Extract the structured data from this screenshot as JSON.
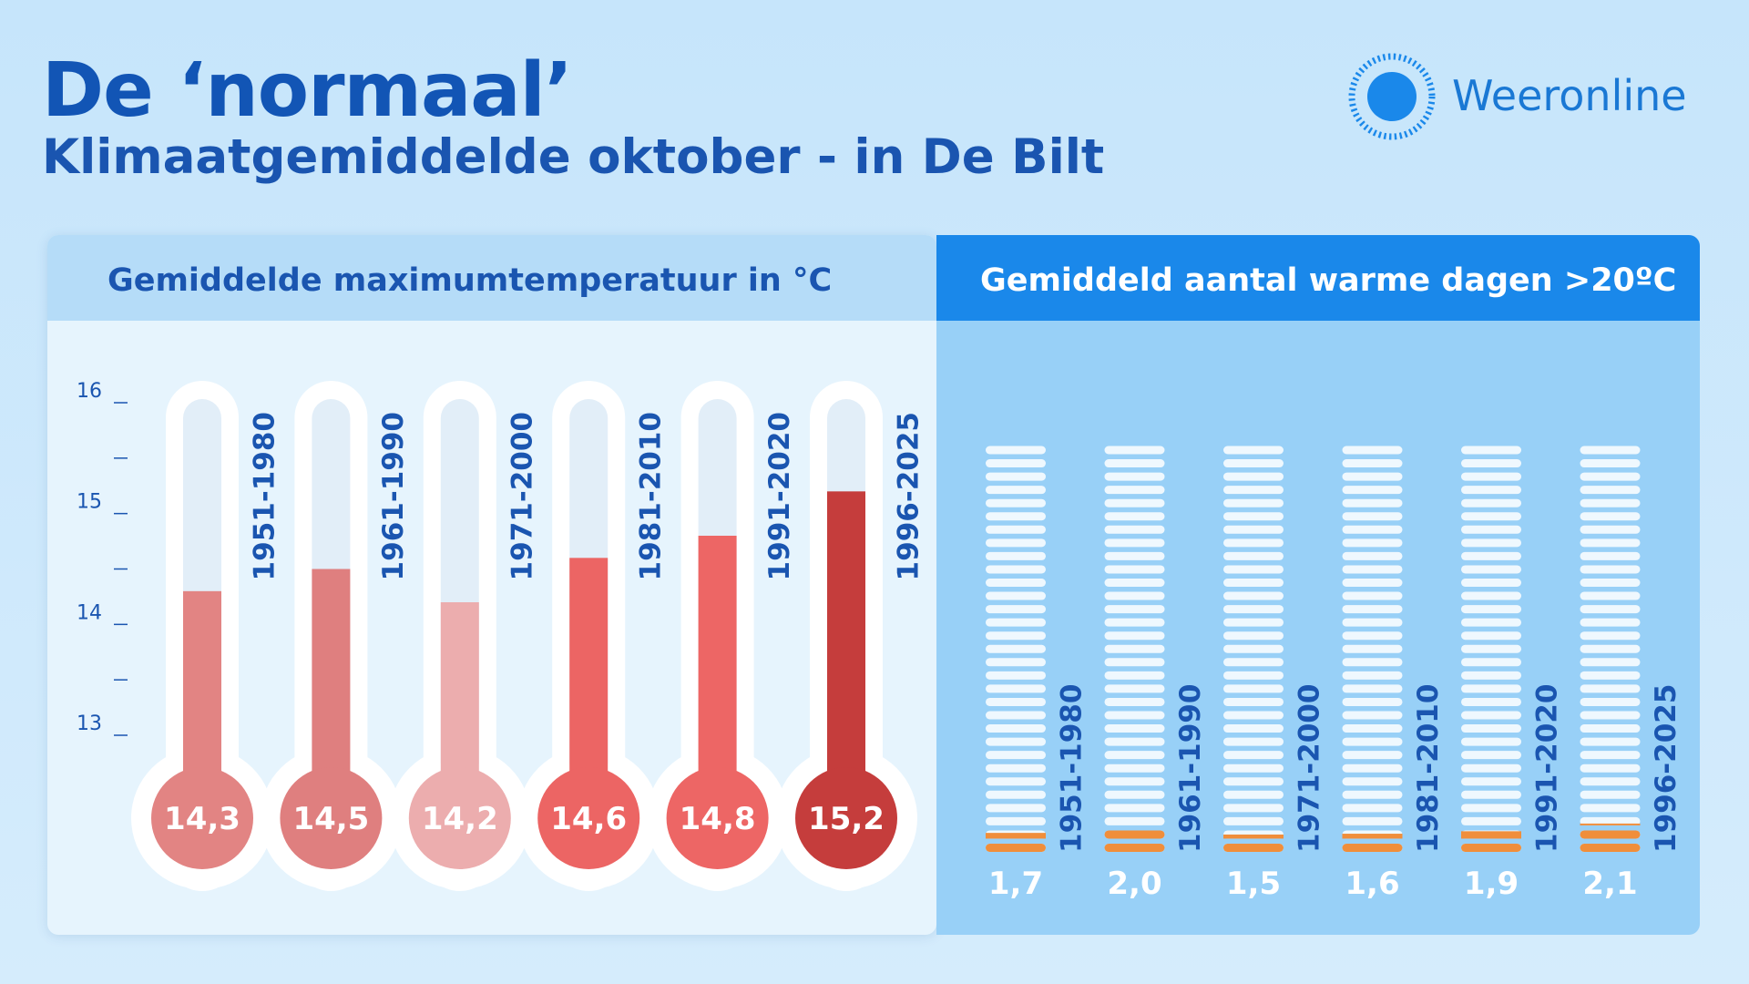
{
  "header": {
    "title": "De ‘normaal’",
    "subtitle": "Klimaatgemiddelde oktober - in De Bilt"
  },
  "brand": {
    "name": "Weeronline",
    "icon": "sun-icon"
  },
  "colors": {
    "title": "#1255b5",
    "brand": "#1a78d4",
    "dash": "#eff8fe",
    "warm_days": "#f08e3b"
  },
  "chart_data": [
    {
      "type": "bar",
      "title": "Gemiddelde maximumtemperatuur in °C",
      "categories": [
        "1951-1980",
        "1961-1990",
        "1971-2000",
        "1981-2010",
        "1991-2020",
        "1996-2025"
      ],
      "values": [
        14.3,
        14.5,
        14.2,
        14.6,
        14.8,
        15.2
      ],
      "value_labels": [
        "14,3",
        "14,5",
        "14,2",
        "14,6",
        "14,8",
        "15,2"
      ],
      "colors": [
        "#e28483",
        "#df7f7f",
        "#ecadae",
        "#ec6564",
        "#ed6665",
        "#c53d3c"
      ],
      "yticks": [
        "13",
        "14",
        "15",
        "16"
      ],
      "ylim": [
        13,
        16
      ],
      "style": "thermometer"
    },
    {
      "type": "bar",
      "title": "Gemiddeld aantal warme dagen >20ºC",
      "categories": [
        "1951-1980",
        "1961-1990",
        "1971-2000",
        "1981-2010",
        "1991-2020",
        "1996-2025"
      ],
      "values": [
        1.7,
        2.0,
        1.5,
        1.6,
        1.9,
        2.1
      ],
      "value_labels": [
        "1,7",
        "2,0",
        "1,5",
        "1,6",
        "1,9",
        "2,1"
      ],
      "max_days": 31,
      "style": "day-stack"
    }
  ]
}
